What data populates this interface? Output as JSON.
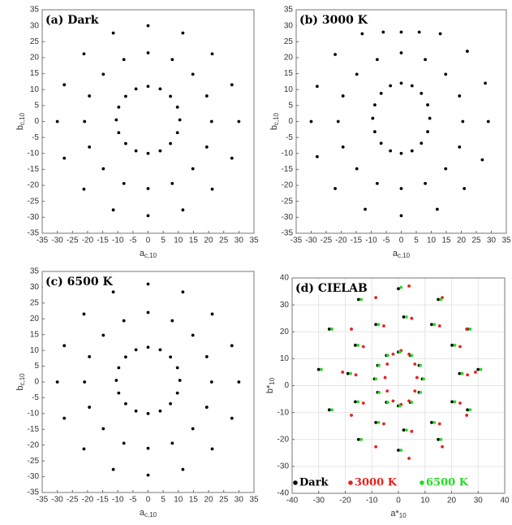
{
  "chart_data": [
    {
      "type": "scatter",
      "title": "(a) Dark",
      "xlabel": {
        "base": "a",
        "sub": "c,10"
      },
      "ylabel": {
        "base": "b",
        "sub": "c,10"
      },
      "xlim": [
        -35,
        35
      ],
      "ylim": [
        -35,
        35
      ],
      "xticks": [
        -35,
        -30,
        -25,
        -20,
        -15,
        -10,
        -5,
        0,
        5,
        10,
        15,
        20,
        25,
        30,
        35
      ],
      "yticks": [
        -35,
        -30,
        -25,
        -20,
        -15,
        -10,
        -5,
        0,
        5,
        10,
        15,
        20,
        25,
        30,
        35
      ],
      "grid": false,
      "series": [
        {
          "color": "#000000",
          "x": [
            10.5,
            9.7,
            7.4,
            4.0,
            0,
            -4.0,
            -7.4,
            -9.7,
            -10.5,
            -9.7,
            -7.4,
            -4.0,
            0,
            4.0,
            7.4,
            9.7,
            21,
            19.4,
            14.8,
            8.0,
            0,
            -8.0,
            -14.8,
            -19.4,
            -21,
            -19.4,
            -14.8,
            -8.0,
            0,
            8.0,
            14.8,
            19.4,
            30,
            27.7,
            21.2,
            11.5,
            0,
            -11.5,
            -21.2,
            -27.7,
            -30,
            -27.7,
            -21.2,
            -11.5,
            0,
            11.5,
            21.2,
            27.7
          ],
          "y": [
            0.5,
            4.5,
            7.9,
            10.2,
            11,
            10.2,
            7.9,
            4.5,
            0.5,
            -3.5,
            -6.9,
            -9.2,
            -10,
            -9.2,
            -6.9,
            -3.5,
            0,
            8.0,
            14.8,
            19.4,
            21.5,
            19.4,
            14.8,
            8.0,
            0,
            -8.0,
            -14.8,
            -19.4,
            -21,
            -19.4,
            -14.8,
            -8.0,
            0,
            11.5,
            21.2,
            27.7,
            30,
            27.7,
            21.2,
            11.5,
            0,
            -11.5,
            -21.2,
            -27.7,
            -29.5,
            -27.7,
            -21.2,
            -11.5
          ]
        }
      ]
    },
    {
      "type": "scatter",
      "title": "(b) 3000 K",
      "xlabel": {
        "base": "a",
        "sub": "c,10"
      },
      "ylabel": {
        "base": "b",
        "sub": "c,10"
      },
      "xlim": [
        -35,
        35
      ],
      "ylim": [
        -35,
        35
      ],
      "xticks": [
        -35,
        -30,
        -25,
        -20,
        -15,
        -10,
        -5,
        0,
        5,
        10,
        15,
        20,
        25,
        30,
        35
      ],
      "yticks": [
        -35,
        -30,
        -25,
        -20,
        -15,
        -10,
        -5,
        0,
        5,
        10,
        15,
        20,
        25,
        30,
        35
      ],
      "grid": false,
      "series": [
        {
          "color": "#000000",
          "x": [
            9.5,
            8.8,
            6.7,
            3.6,
            0,
            -3.6,
            -6.7,
            -8.8,
            -9.5,
            -8.8,
            -6.7,
            -3.6,
            0,
            3.6,
            6.7,
            8.8,
            20.5,
            19.4,
            14.8,
            8.0,
            0,
            -8.0,
            -14.8,
            -19.4,
            -21,
            -19.4,
            -14.8,
            -8.0,
            0,
            8.0,
            14.8,
            19.4,
            29,
            28,
            22,
            13,
            6,
            0,
            -6,
            -13,
            -22,
            -28,
            -30,
            -28,
            -22,
            -12,
            0,
            12,
            21,
            27
          ],
          "y": [
            1,
            5.2,
            8.8,
            11.2,
            12,
            11.2,
            8.8,
            5.2,
            1,
            -3.2,
            -6.8,
            -9.2,
            -10,
            -9.2,
            -6.8,
            -3.2,
            0,
            8.0,
            14.8,
            19.4,
            21.5,
            19.4,
            14.8,
            8.0,
            0,
            -8.0,
            -14.8,
            -19.4,
            -21,
            -19.4,
            -14.8,
            -8.0,
            0,
            12,
            22,
            27.5,
            28,
            28,
            28,
            27.5,
            21,
            11,
            0,
            -11,
            -21,
            -27.5,
            -29.5,
            -27.5,
            -21,
            -12
          ]
        }
      ]
    },
    {
      "type": "scatter",
      "title": "(c) 6500 K",
      "xlabel": {
        "base": "a",
        "sub": "c,10"
      },
      "ylabel": {
        "base": "b",
        "sub": "c,10"
      },
      "xlim": [
        -35,
        35
      ],
      "ylim": [
        -35,
        35
      ],
      "xticks": [
        -35,
        -30,
        -25,
        -20,
        -15,
        -10,
        -5,
        0,
        5,
        10,
        15,
        20,
        25,
        30,
        35
      ],
      "yticks": [
        -35,
        -30,
        -25,
        -20,
        -15,
        -10,
        -5,
        0,
        5,
        10,
        15,
        20,
        25,
        30,
        35
      ],
      "grid": false,
      "series": [
        {
          "color": "#000000",
          "x": [
            10.5,
            9.7,
            7.4,
            4.0,
            0,
            -4.0,
            -7.4,
            -9.7,
            -10.5,
            -9.7,
            -7.4,
            -4.0,
            0,
            4.0,
            7.4,
            9.7,
            21,
            19.4,
            14.8,
            8.0,
            0,
            -8.0,
            -14.8,
            -19.4,
            -21,
            -19.4,
            -14.8,
            -8.0,
            0,
            8.0,
            14.8,
            19.4,
            30,
            27.7,
            21.2,
            11.5,
            0,
            -11.5,
            -21.2,
            -27.7,
            -30,
            -27.7,
            -21.2,
            -11.5,
            0,
            11.5,
            21.2,
            27.7
          ],
          "y": [
            0.5,
            4.5,
            7.9,
            10.2,
            11,
            10.2,
            7.9,
            4.5,
            0.5,
            -3.5,
            -6.9,
            -9.2,
            -10,
            -9.2,
            -6.9,
            -3.5,
            0,
            8.0,
            14.8,
            19.4,
            22,
            19.4,
            14.8,
            8.0,
            0,
            -8.0,
            -14.8,
            -19.4,
            -21,
            -19.4,
            -14.8,
            -8.0,
            0,
            11.5,
            21.5,
            28.5,
            31,
            28.5,
            21.5,
            11.5,
            0,
            -11.5,
            -21.2,
            -27.7,
            -29.5,
            -27.7,
            -21.2,
            -11.5
          ]
        }
      ]
    },
    {
      "type": "scatter",
      "title": "(d) CIELAB",
      "xlabel": {
        "base": "a*",
        "sub": "10"
      },
      "ylabel": {
        "base": "b*",
        "sub": "10"
      },
      "xlim": [
        -40,
        40
      ],
      "ylim": [
        -40,
        40
      ],
      "xticks": [
        -40,
        -30,
        -20,
        -10,
        0,
        10,
        20,
        30,
        40
      ],
      "yticks": [
        -40,
        -30,
        -20,
        -10,
        0,
        10,
        20,
        30,
        40
      ],
      "grid": true,
      "series": [
        {
          "name": "Dark",
          "color": "#000000",
          "x": [
            9,
            7.8,
            4.5,
            0,
            -4.5,
            -7.8,
            -9,
            -7.8,
            -4.5,
            0,
            4.5,
            7.8,
            23,
            20.2,
            12.5,
            2,
            -8.5,
            -16.2,
            -19,
            -16.2,
            -8.5,
            2,
            12.5,
            20.2,
            30,
            26,
            15,
            0,
            -15,
            -26,
            -30,
            -26,
            -15,
            0,
            15,
            26
          ],
          "y": [
            2.5,
            7.5,
            11.2,
            12.5,
            11.2,
            7.5,
            2.5,
            -2.5,
            -6.2,
            -7.5,
            -6.2,
            -2.5,
            4.5,
            15,
            22.7,
            25.5,
            22.7,
            15,
            4.5,
            -6,
            -13.7,
            -16.5,
            -13.7,
            -6,
            6,
            21,
            32,
            36,
            32,
            21,
            6,
            -9,
            -20,
            -24,
            -20,
            -9
          ]
        },
        {
          "name": "3000 K",
          "color": "#e8211e",
          "x": [
            7,
            6.2,
            4,
            1,
            -2,
            -4.2,
            -5,
            -4.2,
            -2,
            1,
            4,
            6.2,
            26,
            23.2,
            15.5,
            5,
            -5.5,
            -13.2,
            -16,
            -13.2,
            -5.5,
            5,
            15.5,
            23.2,
            29,
            25.7,
            16.5,
            4,
            -8.5,
            -17.7,
            -21,
            -17.7,
            -8.5,
            4,
            16.5,
            25.7
          ],
          "y": [
            3,
            8,
            11.7,
            13,
            11.7,
            8,
            3,
            -2,
            -5.7,
            -7,
            -5.7,
            -2,
            4,
            14.5,
            22.2,
            25,
            22.2,
            14.5,
            4,
            -6.5,
            -14.2,
            -17,
            -14.2,
            -6.5,
            5,
            21,
            32.7,
            37,
            32.7,
            21,
            5,
            -11,
            -22.7,
            -27,
            -22.7,
            -11
          ]
        },
        {
          "name": "6500 K",
          "color": "#22dd22",
          "x": [
            9.5,
            8.3,
            5,
            0.5,
            -4,
            -7.3,
            -8.5,
            -7.3,
            -4,
            0.5,
            5,
            8.3,
            24,
            21.2,
            13.5,
            3,
            -7.5,
            -15.2,
            -18,
            -15.2,
            -7.5,
            3,
            13.5,
            21.2,
            31,
            27,
            16,
            1,
            -14,
            -25,
            -29,
            -25,
            -14,
            1,
            16,
            27
          ],
          "y": [
            2.5,
            7.5,
            11.2,
            12.5,
            11.2,
            7.5,
            2.5,
            -2.5,
            -6.2,
            -7.5,
            -6.2,
            -2.5,
            4.5,
            15,
            22.7,
            25.5,
            22.7,
            15,
            4.5,
            -6,
            -13.7,
            -16.5,
            -13.7,
            -6,
            6,
            21,
            32,
            36.5,
            32,
            21,
            6,
            -9,
            -20,
            -24,
            -20,
            -9
          ]
        }
      ]
    }
  ]
}
